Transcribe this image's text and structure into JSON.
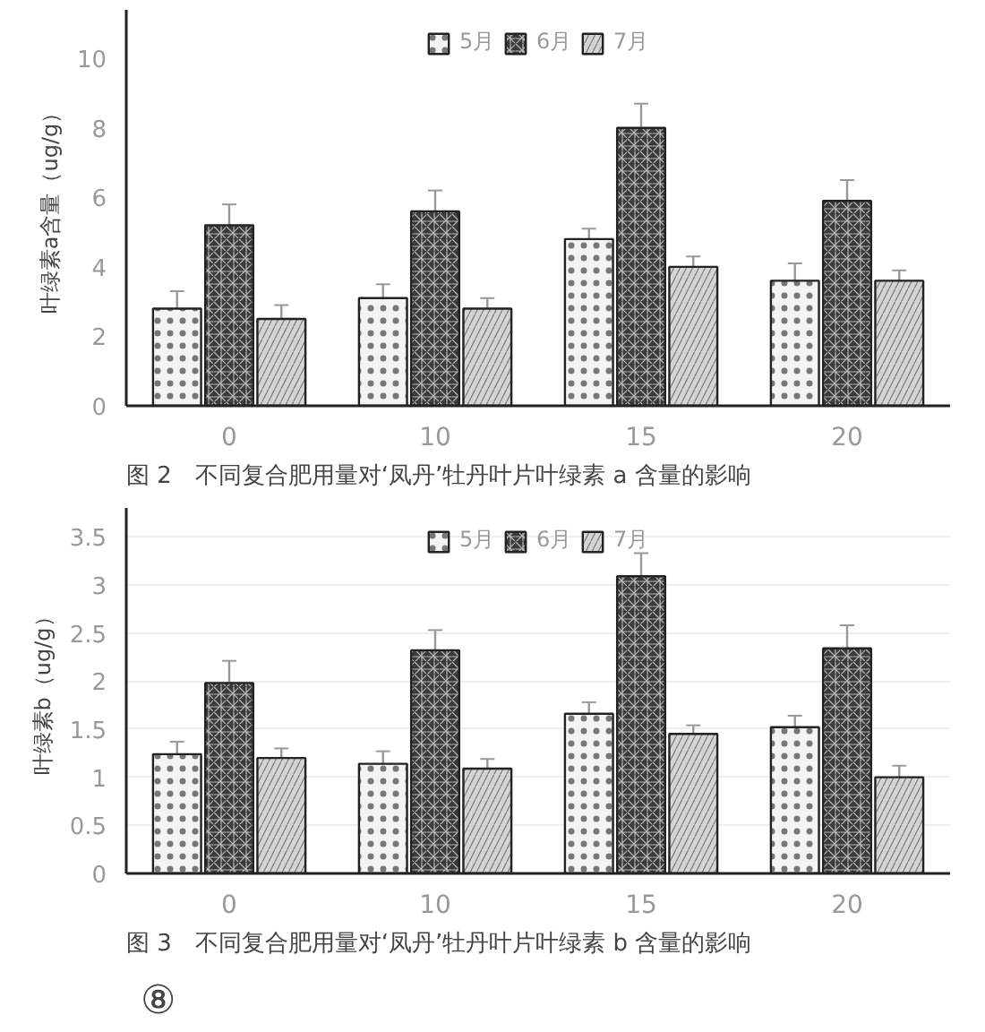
{
  "chart_data": [
    {
      "type": "bar",
      "title": "图 2　不同复合肥用量对‘凤丹’牡丹叶片叶绿素 a 含量的影响",
      "ylabel": "叶绿素a含量（ug/g）",
      "categories": [
        "0",
        "10",
        "15",
        "20"
      ],
      "series": [
        {
          "name": "5月",
          "color": "#f3f3f3",
          "values": [
            2.8,
            3.1,
            4.8,
            3.6
          ],
          "errors": [
            [
              2.8,
              3.3
            ],
            [
              3.1,
              3.5
            ],
            [
              4.8,
              5.1
            ],
            [
              3.6,
              4.1
            ]
          ]
        },
        {
          "name": "6月",
          "color": "#3a3a3a",
          "values": [
            5.2,
            5.6,
            8.0,
            5.9
          ],
          "errors": [
            [
              5.2,
              5.8
            ],
            [
              5.6,
              6.2
            ],
            [
              8.0,
              8.7
            ],
            [
              5.9,
              6.5
            ]
          ]
        },
        {
          "name": "7月",
          "color": "#d4d4d4",
          "values": [
            2.5,
            2.8,
            4.0,
            3.6
          ],
          "errors": [
            [
              2.5,
              2.9
            ],
            [
              2.8,
              3.1
            ],
            [
              4.0,
              4.3
            ],
            [
              3.6,
              3.9
            ]
          ]
        }
      ],
      "ylim": [
        0,
        11.4
      ],
      "yticks": [
        0,
        2,
        4,
        6,
        8,
        10
      ],
      "grid": false,
      "legend": "top"
    },
    {
      "type": "bar",
      "title": "图 3　不同复合肥用量对‘凤丹’牡丹叶片叶绿素 b 含量的影响",
      "ylabel": "叶绿素b（ug/g）",
      "categories": [
        "0",
        "10",
        "15",
        "20"
      ],
      "series": [
        {
          "name": "5月",
          "color": "#f3f3f3",
          "values": [
            1.24,
            1.14,
            1.66,
            1.52
          ],
          "errors": [
            [
              1.24,
              1.37
            ],
            [
              1.14,
              1.27
            ],
            [
              1.66,
              1.78
            ],
            [
              1.52,
              1.64
            ]
          ]
        },
        {
          "name": "6月",
          "color": "#3a3a3a",
          "values": [
            1.98,
            2.32,
            3.09,
            2.34
          ],
          "errors": [
            [
              1.98,
              2.21
            ],
            [
              2.32,
              2.53
            ],
            [
              3.09,
              3.33
            ],
            [
              2.34,
              2.58
            ]
          ]
        },
        {
          "name": "7月",
          "color": "#d4d4d4",
          "values": [
            1.2,
            1.09,
            1.45,
            1.0
          ],
          "errors": [
            [
              1.2,
              1.3
            ],
            [
              1.09,
              1.19
            ],
            [
              1.45,
              1.54
            ],
            [
              1.0,
              1.12
            ]
          ]
        }
      ],
      "ylim": [
        0,
        3.8
      ],
      "yticks": [
        0,
        {
          "value": 0.5,
          "label": "0.5"
        },
        1,
        {
          "value": 1.5,
          "label": "1.5"
        },
        2,
        {
          "value": 2.5,
          "label": "2.5"
        },
        3,
        {
          "value": 3.5,
          "label": "3.5"
        }
      ],
      "grid": "y",
      "legend": "top",
      "annotations": [
        "⑧"
      ]
    }
  ]
}
